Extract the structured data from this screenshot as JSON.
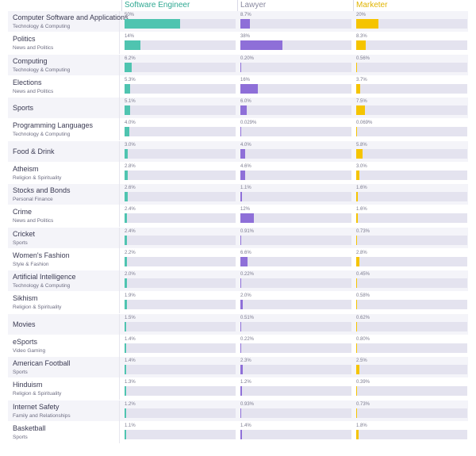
{
  "chart_data": {
    "type": "bar",
    "orientation": "horizontal",
    "series": [
      {
        "name": "Software Engineer",
        "color": "#4fc4b0",
        "values": [
          50,
          14,
          6.2,
          5.3,
          5.1,
          4.0,
          3.0,
          2.8,
          2.6,
          2.4,
          2.4,
          2.2,
          2.0,
          1.9,
          1.5,
          1.4,
          1.4,
          1.3,
          1.2,
          1.1
        ],
        "labels": [
          "50%",
          "14%",
          "6.2%",
          "5.3%",
          "5.1%",
          "4.0%",
          "3.0%",
          "2.8%",
          "2.6%",
          "2.4%",
          "2.4%",
          "2.2%",
          "2.0%",
          "1.9%",
          "1.5%",
          "1.4%",
          "1.4%",
          "1.3%",
          "1.2%",
          "1.1%"
        ]
      },
      {
        "name": "Lawyer",
        "color": "#8e6fd8",
        "values": [
          8.7,
          38,
          0.2,
          16,
          6.0,
          0.029,
          4.0,
          4.6,
          1.1,
          12,
          0.91,
          6.6,
          0.22,
          2.0,
          0.51,
          0.22,
          2.3,
          1.2,
          0.93,
          1.4
        ],
        "labels": [
          "8.7%",
          "38%",
          "0.20%",
          "16%",
          "6.0%",
          "0.029%",
          "4.0%",
          "4.6%",
          "1.1%",
          "12%",
          "0.91%",
          "6.6%",
          "0.22%",
          "2.0%",
          "0.51%",
          "0.22%",
          "2.3%",
          "1.2%",
          "0.93%",
          "1.4%"
        ]
      },
      {
        "name": "Marketer",
        "color": "#f5c400",
        "values": [
          20,
          8.3,
          0.56,
          3.7,
          7.5,
          0.069,
          5.8,
          3.0,
          1.6,
          1.6,
          0.73,
          2.8,
          0.45,
          0.58,
          0.62,
          0.8,
          2.5,
          0.39,
          0.73,
          1.8
        ],
        "labels": [
          "20%",
          "8.3%",
          "0.56%",
          "3.7%",
          "7.5%",
          "0.069%",
          "5.8%",
          "3.0%",
          "1.6%",
          "1.6%",
          "0.73%",
          "2.8%",
          "0.45%",
          "0.58%",
          "0.62%",
          "0.80%",
          "2.5%",
          "0.39%",
          "0.73%",
          "1.8%"
        ]
      }
    ],
    "categories": [
      {
        "topic": "Computer Software and Applications",
        "category": "Technology & Computing"
      },
      {
        "topic": "Politics",
        "category": "News and Politics"
      },
      {
        "topic": "Computing",
        "category": "Technology & Computing"
      },
      {
        "topic": "Elections",
        "category": "News and Politics"
      },
      {
        "topic": "Sports",
        "category": ""
      },
      {
        "topic": "Programming Languages",
        "category": "Technology & Computing"
      },
      {
        "topic": "Food & Drink",
        "category": ""
      },
      {
        "topic": "Atheism",
        "category": "Religion & Spirituality"
      },
      {
        "topic": "Stocks and Bonds",
        "category": "Personal Finance"
      },
      {
        "topic": "Crime",
        "category": "News and Politics"
      },
      {
        "topic": "Cricket",
        "category": "Sports"
      },
      {
        "topic": "Women's Fashion",
        "category": "Style & Fashion"
      },
      {
        "topic": "Artificial Intelligence",
        "category": "Technology & Computing"
      },
      {
        "topic": "Sikhism",
        "category": "Religion & Spirituality"
      },
      {
        "topic": "Movies",
        "category": ""
      },
      {
        "topic": "eSports",
        "category": "Video Gaming"
      },
      {
        "topic": "American Football",
        "category": "Sports"
      },
      {
        "topic": "Hinduism",
        "category": "Religion & Spirituality"
      },
      {
        "topic": "Internet Safety",
        "category": "Family and Relationships"
      },
      {
        "topic": "Basketball",
        "category": "Sports"
      }
    ],
    "xlim": [
      0,
      100
    ],
    "title": "",
    "xlabel": "",
    "ylabel": "",
    "legend": "top"
  }
}
